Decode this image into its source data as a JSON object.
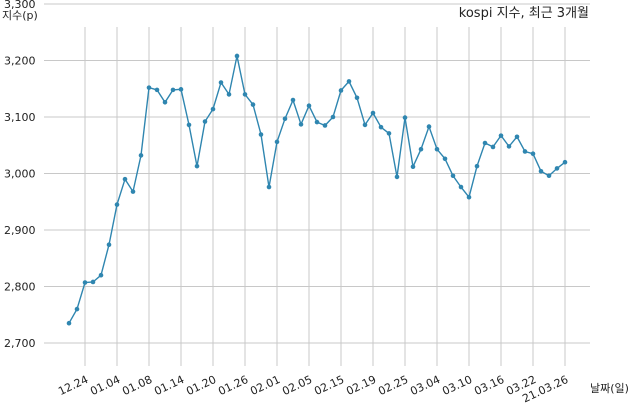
{
  "chart_data": {
    "type": "line",
    "title": "kospi 지수, 최근 3개월",
    "ylabel": "지수(p)",
    "xlabel": "날짜(일)",
    "ylim": [
      2700,
      3300
    ],
    "yticks": [
      2700,
      2800,
      2900,
      3000,
      3100,
      3200,
      3300
    ],
    "ytick_labels": [
      "2,700",
      "2,800",
      "2,900",
      "3,000",
      "3,100",
      "3,200",
      "3,300"
    ],
    "grid": true,
    "line_color": "#2f86b0",
    "xtick_labels": [
      "12.24",
      "01.04",
      "01.08",
      "01.14",
      "01.20",
      "01.26",
      "02.01",
      "02.05",
      "02.15",
      "02.19",
      "02.25",
      "03.04",
      "03.10",
      "03.16",
      "03.22",
      "21.03.26"
    ],
    "xtick_positions": [
      2,
      6,
      10,
      14,
      18,
      22,
      26,
      30,
      34,
      38,
      42,
      46,
      50,
      54,
      58,
      62
    ],
    "series": [
      {
        "values": [
          2735,
          2760,
          2807,
          2808,
          2820,
          2874,
          2945,
          2990,
          2968,
          3032,
          3152,
          3148,
          3126,
          3148,
          3149,
          3086,
          3013,
          3092,
          3114,
          3161,
          3140,
          3208,
          3140,
          3122,
          3069,
          2976,
          3056,
          3097,
          3130,
          3087,
          3120,
          3091,
          3085,
          3100,
          3147,
          3163,
          3134,
          3086,
          3107,
          3082,
          3071,
          2994,
          3099,
          3012,
          3043,
          3083,
          3043,
          3026,
          2996,
          2976,
          2958,
          3013,
          3054,
          3047,
          3067,
          3048,
          3065,
          3039,
          3035,
          3004,
          2996,
          3009,
          3020
        ]
      }
    ]
  }
}
